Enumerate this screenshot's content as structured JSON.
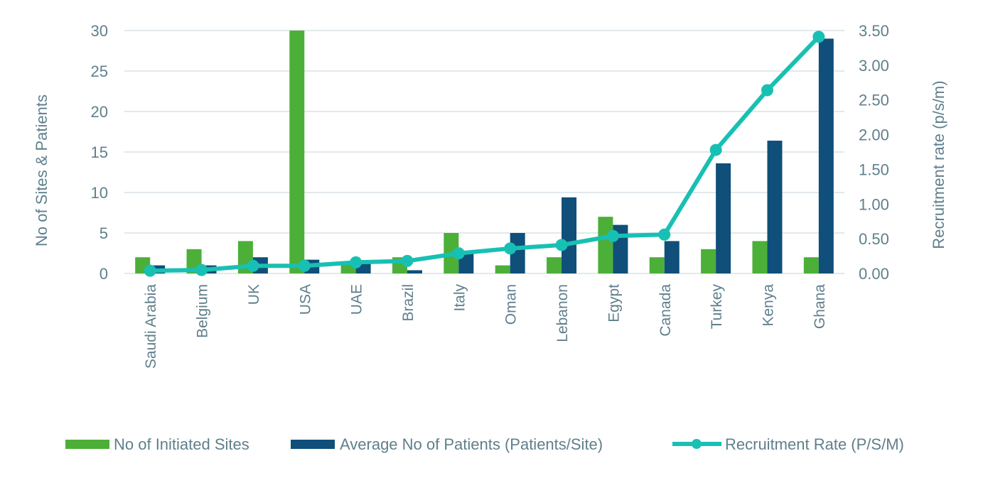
{
  "chart_data": {
    "type": "bar",
    "title": "",
    "categories": [
      "Saudi Arabia",
      "Belgium",
      "UK",
      "USA",
      "UAE",
      "Brazil",
      "Italy",
      "Oman",
      "Lebanon",
      "Egypt",
      "Canada",
      "Turkey",
      "Kenya",
      "Ghana"
    ],
    "series": [
      {
        "name": "No of Initiated Sites",
        "type": "bar",
        "axis": "left",
        "color": "#4caf38",
        "values": [
          2,
          3,
          4,
          30,
          1.5,
          2,
          5,
          1,
          2,
          7,
          2,
          3,
          4,
          2
        ]
      },
      {
        "name": "Average No of Patients (Patients/Site)",
        "type": "bar",
        "axis": "left",
        "color": "#0f4f7a",
        "values": [
          1,
          1,
          2,
          1.7,
          1.6,
          0.4,
          2.7,
          5,
          9.4,
          6,
          4,
          13.6,
          16.4,
          29
        ]
      },
      {
        "name": "Recruitment Rate (P/S/M)",
        "type": "line",
        "axis": "right",
        "color": "#18c0b3",
        "values": [
          0.04,
          0.05,
          0.11,
          0.11,
          0.16,
          0.18,
          0.29,
          0.36,
          0.41,
          0.54,
          0.56,
          1.78,
          2.64,
          3.41
        ]
      }
    ],
    "ylabel": "No of Sites & Patients",
    "y2label": "Recruitment rate (p/s/m)",
    "ylim": [
      0,
      30
    ],
    "y2lim": [
      0,
      3.5
    ],
    "yticks": [
      "0",
      "5",
      "10",
      "15",
      "20",
      "25",
      "30"
    ],
    "y2ticks": [
      "0.00",
      "0.50",
      "1.00",
      "1.50",
      "2.00",
      "2.50",
      "3.00",
      "3.50"
    ],
    "grid": true,
    "legend_position": "bottom"
  }
}
